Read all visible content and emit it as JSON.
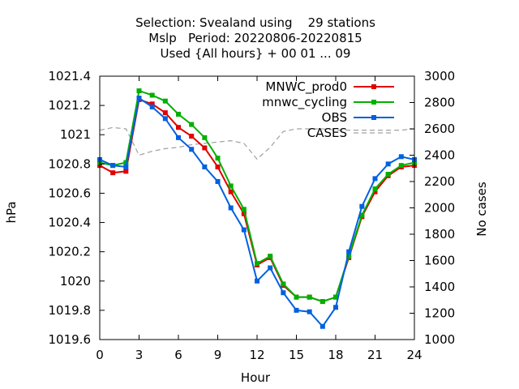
{
  "chart_data": {
    "type": "line",
    "title_lines": [
      "Selection: Svealand using    29 stations",
      "Mslp   Period: 20220806-20220815",
      "Used {All hours} + 00 01 ... 09"
    ],
    "xlabel": "Hour",
    "ylabel": "hPa",
    "y2label": "No cases",
    "xlim": [
      0,
      24
    ],
    "ylim": [
      1019.6,
      1021.4
    ],
    "y2lim": [
      1000,
      3000
    ],
    "xticks": [
      "0",
      "3",
      "6",
      "9",
      "12",
      "15",
      "18",
      "21",
      "24"
    ],
    "yticks": [
      "1019.6",
      "1019.8",
      "1020",
      "1020.2",
      "1020.4",
      "1020.6",
      "1020.8",
      "1021",
      "1021.2",
      "1021.4"
    ],
    "y2ticks": [
      "1000",
      "1200",
      "1400",
      "1600",
      "1800",
      "2000",
      "2200",
      "2400",
      "2600",
      "2800",
      "3000"
    ],
    "grid": false,
    "legend_position": "top-right",
    "x": [
      0,
      1,
      2,
      3,
      4,
      5,
      6,
      7,
      8,
      9,
      10,
      11,
      12,
      13,
      14,
      15,
      16,
      17,
      18,
      19,
      20,
      21,
      22,
      23,
      24
    ],
    "series": [
      {
        "name": "MNWC_prod0",
        "color": "#e00000",
        "values": [
          1020.79,
          1020.74,
          1020.75,
          1021.24,
          1021.21,
          1021.15,
          1021.05,
          1020.99,
          1020.91,
          1020.78,
          1020.61,
          1020.46,
          1020.11,
          1020.16,
          1019.97,
          1019.89,
          1019.89,
          1019.86,
          1019.89,
          1020.16,
          1020.44,
          1020.61,
          1020.72,
          1020.78,
          1020.79
        ]
      },
      {
        "name": "mnwc_cycling",
        "color": "#00b000",
        "values": [
          1020.81,
          1020.79,
          1020.81,
          1021.3,
          1021.27,
          1021.23,
          1021.14,
          1021.07,
          1020.98,
          1020.84,
          1020.65,
          1020.49,
          1020.12,
          1020.17,
          1019.98,
          1019.89,
          1019.89,
          1019.86,
          1019.89,
          1020.17,
          1020.45,
          1020.63,
          1020.73,
          1020.79,
          1020.81
        ]
      },
      {
        "name": "OBS",
        "color": "#0060e0",
        "values": [
          1020.83,
          1020.79,
          1020.78,
          1021.25,
          1021.19,
          1021.11,
          1020.98,
          1020.9,
          1020.78,
          1020.68,
          1020.5,
          1020.35,
          1020.0,
          1020.09,
          1019.92,
          1019.8,
          1019.79,
          1019.69,
          1019.82,
          1020.2,
          1020.51,
          1020.7,
          1020.8,
          1020.85,
          1020.83
        ]
      }
    ],
    "cases": {
      "name": "CASES",
      "color": "#a0a0a0",
      "axis": "y2",
      "values": [
        2590,
        2610,
        2600,
        2400,
        2430,
        2450,
        2460,
        2480,
        2490,
        2500,
        2510,
        2490,
        2370,
        2460,
        2580,
        2600,
        2600,
        2600,
        2590,
        2590,
        2590,
        2590,
        2590,
        2590,
        2600
      ]
    }
  }
}
